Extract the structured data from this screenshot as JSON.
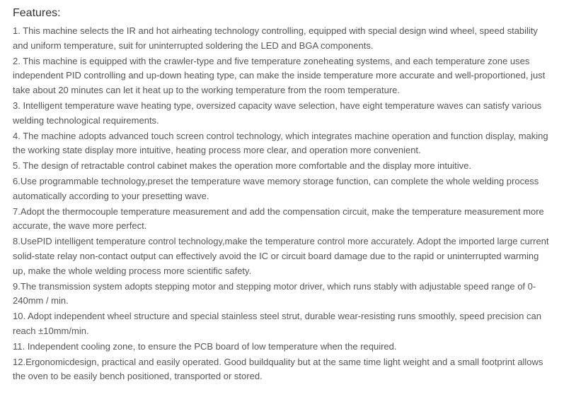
{
  "heading": "Features:",
  "features": {
    "item_01": " 1.   This machine selects the IR and hot airheating technology controlling, equipped with special design wind wheel, speed stability and uniform temperature, suit for uninterrupted soldering the LED and BGA components.",
    "item_02": " 2.  This machine is equipped with the crawler-type and five temperature zoneheating systems, and each temperature zone uses independent PID controlling and up-down heating type, can make the inside temperature more accurate and well-proportioned, just take about 20 minutes can let it heat up to the working temperature from the room temperature.",
    "item_03": " 3.   Intelligent temperature wave heating type, oversized capacity wave selection, have eight temperature waves can satisfy various welding technological requirements.",
    "item_04": " 4.   The machine adopts advanced touch screen control technology, which integrates machine operation and function display, making the working state display more intuitive, heating process more clear, and operation more convenient.",
    "item_05": " 5.   The design of retractable control cabinet makes the operation more comfortable and the display more intuitive.",
    "item_06": " 6.Use programmable technology,preset the temperature wave memory storage function, can complete the whole welding process automatically according to your presetting wave.",
    "item_07": " 7.Adopt the thermocouple temperature measurement and add the compensation circuit, make the temperature measurement more accurate, the wave more perfect.",
    "item_08": " 8.UsePID intelligent temperature control technology,make the temperature control more accurately. Adopt the imported large current solid-state relay non-contact output can effectively avoid the IC or circuit board damage due to the rapid or uninterrupted warming up, make the whole welding process more scientific safety.",
    "item_09": " 9.The transmission system adopts stepping motor and stepping motor driver, which runs stably with adjustable speed range of 0-240mm / min.",
    "item_10": " 10. Adopt independent wheel structure and special stainless steel strut, durable wear-resisting runs smoothly, speed precision can reach ±10mm/min.",
    "item_11": " 11.  Independent cooling zone, to ensure the PCB board of low temperature when the required.",
    "item_12": " 12.Ergonomicdesign, practical and easily operated. Good buildquality but at the same time light weight and a small footprint allows the oven to be easily bench positioned, transported or stored."
  },
  "style": {
    "heading_color": "#333333",
    "heading_fontsize": 16,
    "body_color": "#555555",
    "body_fontsize": 13,
    "background_color": "#ffffff",
    "line_height": 1.6,
    "font_family": "Arial, Helvetica, sans-serif"
  }
}
